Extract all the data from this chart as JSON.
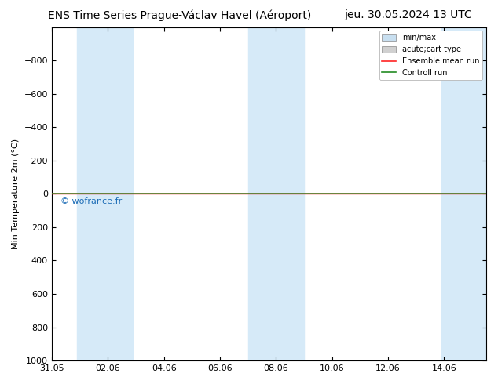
{
  "title_left": "ENS Time Series Prague-Václav Havel (Aéroport)",
  "title_right": "jeu. 30.05.2024 13 UTC",
  "ylabel": "Min Temperature 2m (°C)",
  "watermark": "© wofrance.fr",
  "ylim_top": -1000,
  "ylim_bottom": 1000,
  "yticks": [
    -800,
    -600,
    -400,
    -200,
    0,
    200,
    400,
    600,
    800,
    1000
  ],
  "xtick_labels": [
    "31.05",
    "02.06",
    "04.06",
    "06.06",
    "08.06",
    "10.06",
    "12.06",
    "14.06"
  ],
  "xtick_positions": [
    0,
    2,
    4,
    6,
    8,
    10,
    12,
    14
  ],
  "x_min": 0,
  "x_max": 15.5,
  "shaded_bands": [
    {
      "x_start": 0.9,
      "x_end": 2.9
    },
    {
      "x_start": 7.0,
      "x_end": 9.0
    },
    {
      "x_start": 13.9,
      "x_end": 15.5
    }
  ],
  "shaded_color": "#d6eaf8",
  "control_run_y": 0.0,
  "ensemble_mean_y": 0.0,
  "control_run_color": "#228B22",
  "ensemble_mean_color": "#ff2222",
  "legend_entries": [
    {
      "label": "min/max",
      "color": "#c8dff0",
      "type": "rect"
    },
    {
      "label": "acute;cart type",
      "color": "#d0d0d0",
      "type": "rect"
    },
    {
      "label": "Ensemble mean run",
      "color": "#ff2222",
      "type": "line"
    },
    {
      "label": "Controll run",
      "color": "#228B22",
      "type": "line"
    }
  ],
  "bg_color": "#ffffff",
  "plot_bg_color": "#ffffff",
  "border_color": "#000000",
  "title_fontsize": 10,
  "tick_fontsize": 8,
  "ylabel_fontsize": 8,
  "watermark_color": "#1a6bb5"
}
